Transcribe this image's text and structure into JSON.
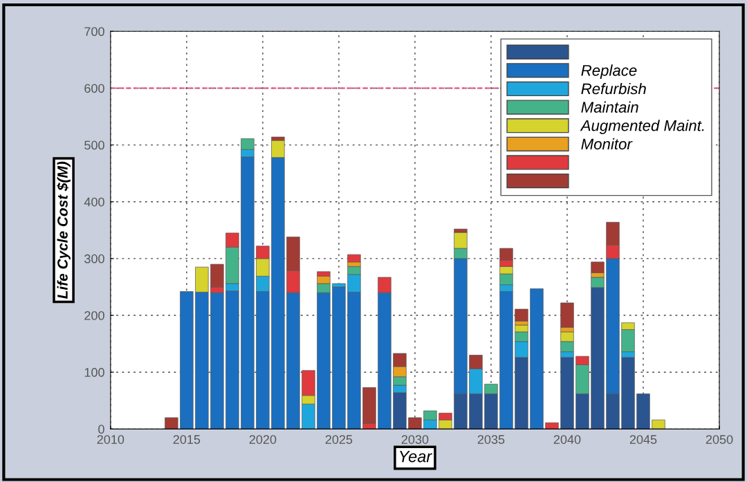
{
  "chart_data": {
    "type": "bar",
    "stacked": true,
    "xlabel": "Year",
    "ylabel": "Life Cycle Cost $(M)",
    "x": [
      2014,
      2015,
      2016,
      2017,
      2018,
      2019,
      2020,
      2021,
      2022,
      2023,
      2024,
      2025,
      2026,
      2027,
      2028,
      2029,
      2030,
      2031,
      2032,
      2033,
      2034,
      2035,
      2036,
      2037,
      2038,
      2039,
      2040,
      2041,
      2042,
      2043,
      2044,
      2045,
      2046
    ],
    "series": [
      {
        "color": "#2a5590",
        "values": [
          null,
          null,
          null,
          null,
          null,
          null,
          null,
          null,
          null,
          null,
          null,
          null,
          null,
          null,
          null,
          64,
          null,
          null,
          null,
          62,
          62,
          62,
          null,
          126,
          null,
          null,
          126,
          62,
          249,
          62,
          126,
          62,
          null
        ]
      },
      {
        "name": "Replace",
        "color": "#1a6fc0",
        "values": [
          null,
          242,
          241,
          240,
          243,
          479,
          242,
          478,
          240,
          null,
          240,
          250,
          241,
          null,
          240,
          null,
          null,
          null,
          null,
          238,
          null,
          null,
          242,
          null,
          247,
          null,
          null,
          null,
          null,
          238,
          null,
          null,
          null
        ]
      },
      {
        "name": "Refurbish",
        "color": "#1fa7dd",
        "values": [
          null,
          null,
          null,
          null,
          13,
          13,
          27,
          null,
          null,
          44,
          null,
          6,
          31,
          null,
          null,
          13,
          null,
          16,
          null,
          null,
          44,
          null,
          12,
          28,
          null,
          null,
          10,
          null,
          null,
          null,
          10,
          null,
          null
        ]
      },
      {
        "name": "Maintain",
        "color": "#45b38a",
        "values": [
          null,
          null,
          null,
          null,
          64,
          19,
          null,
          null,
          null,
          null,
          16,
          null,
          14,
          null,
          null,
          15,
          null,
          16,
          null,
          18,
          null,
          17,
          19,
          17,
          null,
          null,
          18,
          51,
          18,
          null,
          39,
          null,
          null
        ]
      },
      {
        "name": "Augmented Maint.",
        "color": "#d6d22e",
        "values": [
          null,
          null,
          44,
          null,
          null,
          null,
          31,
          30,
          null,
          15,
          null,
          null,
          null,
          null,
          null,
          null,
          null,
          null,
          16,
          28,
          null,
          null,
          13,
          12,
          null,
          null,
          17,
          null,
          null,
          null,
          12,
          null,
          16
        ]
      },
      {
        "name": "Monitor",
        "color": "#e8a020",
        "values": [
          null,
          null,
          null,
          null,
          null,
          null,
          null,
          null,
          null,
          null,
          13,
          null,
          8,
          null,
          null,
          18,
          null,
          null,
          null,
          null,
          null,
          null,
          null,
          7,
          null,
          null,
          8,
          null,
          8,
          null,
          null,
          null,
          null
        ]
      },
      {
        "color": "#e03a3e",
        "values": [
          null,
          null,
          null,
          10,
          25,
          null,
          22,
          null,
          39,
          44,
          8,
          null,
          13,
          10,
          27,
          null,
          null,
          null,
          12,
          null,
          null,
          null,
          11,
          null,
          null,
          11,
          null,
          15,
          null,
          24,
          null,
          null,
          null
        ]
      },
      {
        "color": "#a33b35",
        "values": [
          20,
          null,
          null,
          40,
          null,
          null,
          null,
          6,
          59,
          null,
          null,
          null,
          null,
          63,
          null,
          23,
          20,
          null,
          null,
          6,
          24,
          null,
          21,
          21,
          null,
          null,
          43,
          null,
          19,
          40,
          null,
          null,
          null
        ]
      }
    ],
    "xlim": [
      2010,
      2050
    ],
    "xticks": [
      2010,
      2015,
      2020,
      2025,
      2030,
      2035,
      2040,
      2045,
      2050
    ],
    "ylim": [
      0,
      700
    ],
    "yticks": [
      0,
      100,
      200,
      300,
      400,
      500,
      600,
      700
    ],
    "ref_lines": [
      {
        "axis": "y",
        "value": 600,
        "color": "#e0507a",
        "line_style": "dashed"
      }
    ],
    "grid": true,
    "legend": "top right"
  }
}
